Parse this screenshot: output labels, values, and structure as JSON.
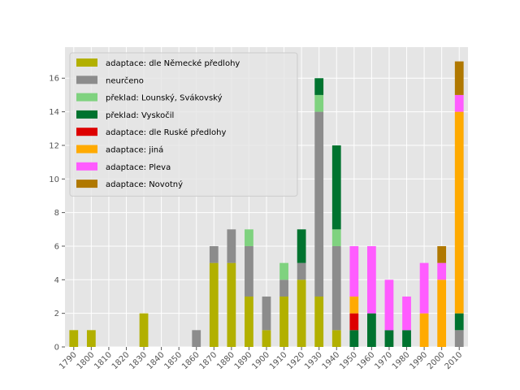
{
  "chart_data": {
    "type": "bar",
    "stacked": true,
    "title": "",
    "xlabel": "",
    "ylabel": "",
    "ylim": [
      0,
      17.85
    ],
    "yticks": [
      0,
      2,
      4,
      6,
      8,
      10,
      12,
      14,
      16
    ],
    "grid": true,
    "legend_position": "top-left",
    "categories": [
      "1790",
      "1800",
      "1810",
      "1820",
      "1830",
      "1840",
      "1850",
      "1860",
      "1870",
      "1880",
      "1890",
      "1900",
      "1910",
      "1920",
      "1930",
      "1940",
      "1950",
      "1960",
      "1970",
      "1980",
      "1990",
      "2000",
      "2010"
    ],
    "series": [
      {
        "name": "adaptace: dle Německé předlohy",
        "color": "#b2b000",
        "values": [
          1,
          1,
          0,
          0,
          2,
          0,
          0,
          0,
          5,
          5,
          3,
          1,
          3,
          4,
          3,
          1,
          0,
          0,
          0,
          0,
          0,
          0,
          0
        ]
      },
      {
        "name": "neurčeno",
        "color": "#8c8c8c",
        "values": [
          0,
          0,
          0,
          0,
          0,
          0,
          0,
          1,
          1,
          2,
          3,
          2,
          1,
          1,
          11,
          5,
          0,
          0,
          0,
          0,
          0,
          0,
          1
        ]
      },
      {
        "name": "překlad: Lounský, Svákovský",
        "color": "#7fd27f",
        "values": [
          0,
          0,
          0,
          0,
          0,
          0,
          0,
          0,
          0,
          0,
          1,
          0,
          1,
          0,
          1,
          1,
          0,
          0,
          0,
          0,
          0,
          0,
          0
        ]
      },
      {
        "name": "překlad: Vyskočil",
        "color": "#00732f",
        "values": [
          0,
          0,
          0,
          0,
          0,
          0,
          0,
          0,
          0,
          0,
          0,
          0,
          0,
          2,
          1,
          5,
          1,
          2,
          1,
          1,
          0,
          0,
          1
        ]
      },
      {
        "name": "adaptace: dle Ruské předlohy",
        "color": "#dd0000",
        "values": [
          0,
          0,
          0,
          0,
          0,
          0,
          0,
          0,
          0,
          0,
          0,
          0,
          0,
          0,
          0,
          0,
          1,
          0,
          0,
          0,
          0,
          0,
          0
        ]
      },
      {
        "name": "adaptace: jiná",
        "color": "#ffaa00",
        "values": [
          0,
          0,
          0,
          0,
          0,
          0,
          0,
          0,
          0,
          0,
          0,
          0,
          0,
          0,
          0,
          0,
          1,
          0,
          0,
          0,
          2,
          4,
          12
        ]
      },
      {
        "name": "adaptace: Pleva",
        "color": "#ff5cff",
        "values": [
          0,
          0,
          0,
          0,
          0,
          0,
          0,
          0,
          0,
          0,
          0,
          0,
          0,
          0,
          0,
          0,
          3,
          4,
          3,
          2,
          3,
          1,
          1
        ]
      },
      {
        "name": "adaptace: Novotný",
        "color": "#b07800",
        "values": [
          0,
          0,
          0,
          0,
          0,
          0,
          0,
          0,
          0,
          0,
          0,
          0,
          0,
          0,
          0,
          0,
          0,
          0,
          0,
          0,
          0,
          1,
          2
        ]
      }
    ]
  }
}
